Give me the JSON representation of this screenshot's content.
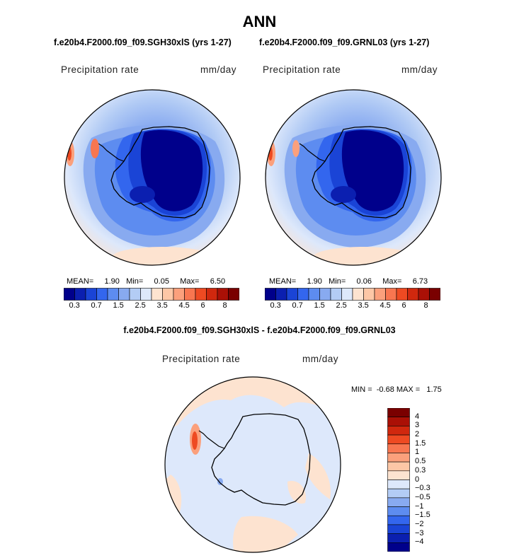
{
  "title": "ANN",
  "panels": [
    {
      "subtitle": "f.e20b4.F2000.f09_f09.SGH30xlS (yrs 1-27)",
      "variable": "Precipitation rate",
      "units": "mm/day",
      "stats": {
        "mean_label": "MEAN=",
        "mean": "1.90",
        "min_label": "Min=",
        "min": "0.05",
        "max_label": "Max=",
        "max": "6.50"
      }
    },
    {
      "subtitle": "f.e20b4.F2000.f09_f09.GRNL03 (yrs 1-27)",
      "variable": "Precipitation rate",
      "units": "mm/day",
      "stats": {
        "mean_label": "MEAN=",
        "mean": "1.90",
        "min_label": "Min=",
        "min": "0.06",
        "max_label": "Max=",
        "max": "6.73"
      }
    }
  ],
  "diff": {
    "subtitle": "f.e20b4.F2000.f09_f09.SGH30xlS - f.e20b4.F2000.f09_f09.GRNL03",
    "variable": "Precipitation rate",
    "units": "mm/day",
    "minmax": "MIN =  -0.68 MAX =   1.75"
  },
  "chart_data": [
    {
      "type": "heatmap",
      "projection": "south-polar-stereographic",
      "title": "f.e20b4.F2000.f09_f09.SGH30xlS (yrs 1-27)",
      "variable": "Precipitation rate",
      "units": "mm/day",
      "mean": 1.9,
      "min": 0.05,
      "max": 6.5,
      "colorbar_ticks": [
        "0.3",
        "0.7",
        "1.5",
        "2.5",
        "3.5",
        "4.5",
        "6",
        "8"
      ],
      "colors": [
        "#00008b",
        "#0b1fb0",
        "#1a44d6",
        "#3366ee",
        "#5d8cf0",
        "#88aaf0",
        "#b3ccf5",
        "#dde8fb",
        "#fde3d0",
        "#fdc7a6",
        "#fba07c",
        "#f87650",
        "#ee4a22",
        "#d0280e",
        "#aa1006",
        "#7a0000"
      ]
    },
    {
      "type": "heatmap",
      "projection": "south-polar-stereographic",
      "title": "f.e20b4.F2000.f09_f09.GRNL03 (yrs 1-27)",
      "variable": "Precipitation rate",
      "units": "mm/day",
      "mean": 1.9,
      "min": 0.06,
      "max": 6.73,
      "colorbar_ticks": [
        "0.3",
        "0.7",
        "1.5",
        "2.5",
        "3.5",
        "4.5",
        "6",
        "8"
      ],
      "colors": [
        "#00008b",
        "#0b1fb0",
        "#1a44d6",
        "#3366ee",
        "#5d8cf0",
        "#88aaf0",
        "#b3ccf5",
        "#dde8fb",
        "#fde3d0",
        "#fdc7a6",
        "#fba07c",
        "#f87650",
        "#ee4a22",
        "#d0280e",
        "#aa1006",
        "#7a0000"
      ]
    },
    {
      "type": "heatmap",
      "projection": "south-polar-stereographic",
      "title": "f.e20b4.F2000.f09_f09.SGH30xlS - f.e20b4.F2000.f09_f09.GRNL03",
      "variable": "Precipitation rate",
      "units": "mm/day",
      "min": -0.68,
      "max": 1.75,
      "colorbar_ticks": [
        "4",
        "3",
        "2",
        "1.5",
        "1",
        "0.5",
        "0.3",
        "0",
        "−0.3",
        "−0.5",
        "−1",
        "−1.5",
        "−2",
        "−3",
        "−4"
      ],
      "colors": [
        "#7a0000",
        "#aa1006",
        "#d0280e",
        "#ee4a22",
        "#f87650",
        "#fba07c",
        "#fdc7a6",
        "#fde3d0",
        "#dde8fb",
        "#b3ccf5",
        "#88aaf0",
        "#5d8cf0",
        "#3366ee",
        "#1a44d6",
        "#0b1fb0",
        "#00008b"
      ]
    }
  ]
}
